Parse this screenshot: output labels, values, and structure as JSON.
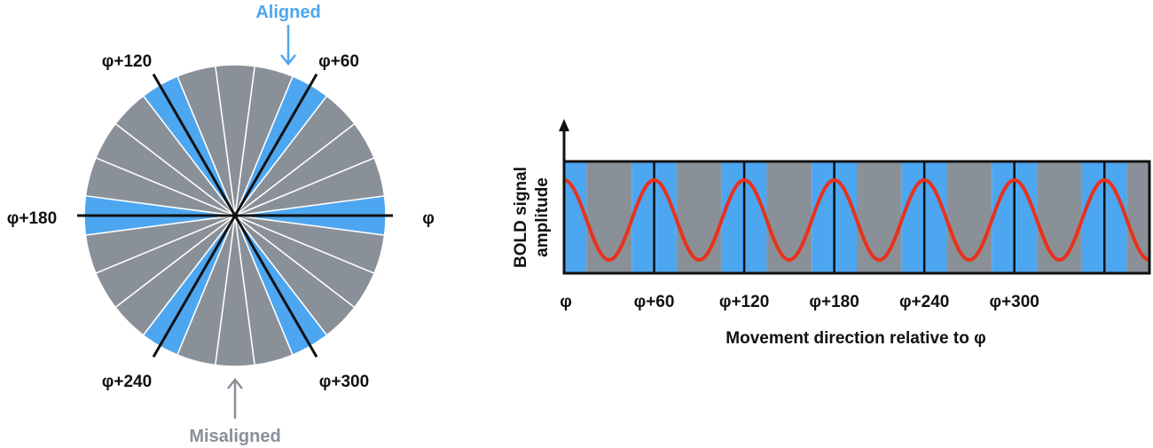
{
  "colors": {
    "aligned": "#4da6f0",
    "misaligned": "#8a9098",
    "signal": "#e8321c",
    "line": "#111111"
  },
  "wheel": {
    "sector_count": 24,
    "line_labels": {
      "phi": "φ",
      "phi_60": "φ+60",
      "phi_120": "φ+120",
      "phi_180": "φ+180",
      "phi_240": "φ+240",
      "phi_300": "φ+300"
    },
    "aligned_label": "Aligned",
    "misaligned_label": "Misaligned"
  },
  "signal_plot": {
    "ylabel_line1": "BOLD signal",
    "ylabel_line2": "amplitude",
    "xlabel": "Movement direction relative to φ",
    "x_ticks": [
      "φ",
      "φ+60",
      "φ+120",
      "φ+180",
      "φ+240",
      "φ+300"
    ],
    "x_range_deg": [
      0,
      390
    ],
    "period_deg": 60,
    "band_pattern": [
      "aligned",
      "misaligned"
    ]
  }
}
